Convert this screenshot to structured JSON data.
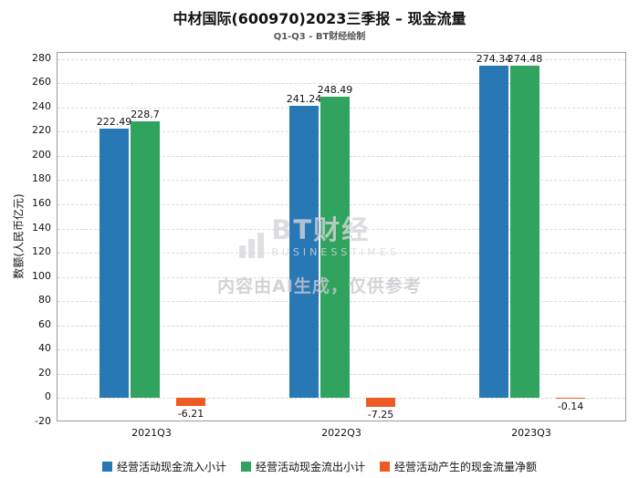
{
  "watermark": {
    "brand": "BT财经",
    "brand_sub": "BUSINESSTIMES",
    "disclaimer": "内容由AI生成，仅供参考"
  },
  "chart_data": {
    "type": "bar",
    "title": "中材国际(600970)2023三季报 – 现金流量",
    "subtitle": "Q1-Q3 - BT财经绘制",
    "categories": [
      "2021Q3",
      "2022Q3",
      "2023Q3"
    ],
    "series": [
      {
        "name": "经营活动现金流入小计",
        "color": "#2878b5",
        "values": [
          222.49,
          241.24,
          274.34
        ]
      },
      {
        "name": "经营活动现金流出小计",
        "color": "#30a35e",
        "values": [
          228.7,
          248.49,
          274.48
        ]
      },
      {
        "name": "经营活动产生的现金流量净额",
        "color": "#ee5a24",
        "values": [
          -6.21,
          -7.25,
          -0.14
        ]
      }
    ],
    "xlabel": "",
    "ylabel": "数额(人民币亿元)",
    "ylim": [
      -20,
      280
    ],
    "ytick_step": 20,
    "grid": true,
    "legend_position": "bottom"
  }
}
